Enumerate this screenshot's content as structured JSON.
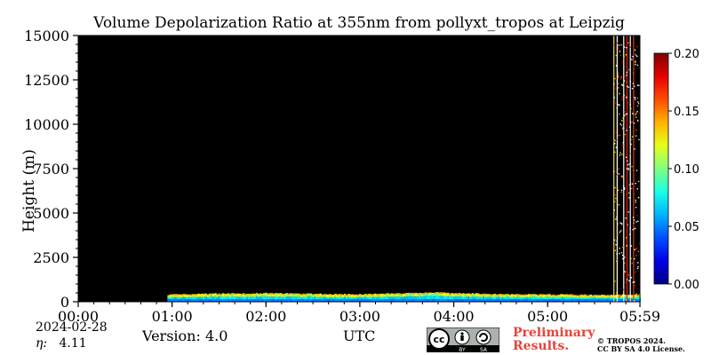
{
  "chart_data": {
    "type": "heatmap",
    "title": "Volume Depolarization Ratio at 355nm from pollyxt_tropos at Leipzig",
    "xlabel": "UTC",
    "ylabel": "Height (m)",
    "x_ticks": [
      "00:00",
      "01:00",
      "02:00",
      "03:00",
      "04:00",
      "05:00",
      "05:59"
    ],
    "y_ticks": [
      "0",
      "2500",
      "5000",
      "7500",
      "10000",
      "12500",
      "15000"
    ],
    "xlim_hours": [
      0,
      5.983
    ],
    "ylim": [
      0,
      15000
    ],
    "colorbar": {
      "min": 0.0,
      "max": 0.2,
      "ticks": [
        "0.00",
        "0.05",
        "0.10",
        "0.15",
        "0.20"
      ],
      "colormap": "jet"
    },
    "background_color": "#000000",
    "data_start_hours": 0.95,
    "aerosol_layer_top_m": [
      [
        0.95,
        350
      ],
      [
        1.5,
        400
      ],
      [
        2.0,
        420
      ],
      [
        2.5,
        380
      ],
      [
        3.0,
        360
      ],
      [
        3.5,
        420
      ],
      [
        3.8,
        470
      ],
      [
        4.0,
        430
      ],
      [
        4.5,
        360
      ],
      [
        5.0,
        350
      ],
      [
        5.7,
        330
      ]
    ],
    "cloud_columns_start_hours": 5.7
  },
  "footer": {
    "date": "2024-02-28",
    "eta_label": "η:",
    "eta_value": "4.11",
    "version": "Version: 4.0",
    "preliminary": [
      "Preliminary",
      "Results."
    ],
    "copyright": [
      "© TROPOS 2024.",
      "CC BY SA 4.0 License."
    ],
    "license_badge": [
      "cc",
      "BY",
      "SA"
    ]
  }
}
